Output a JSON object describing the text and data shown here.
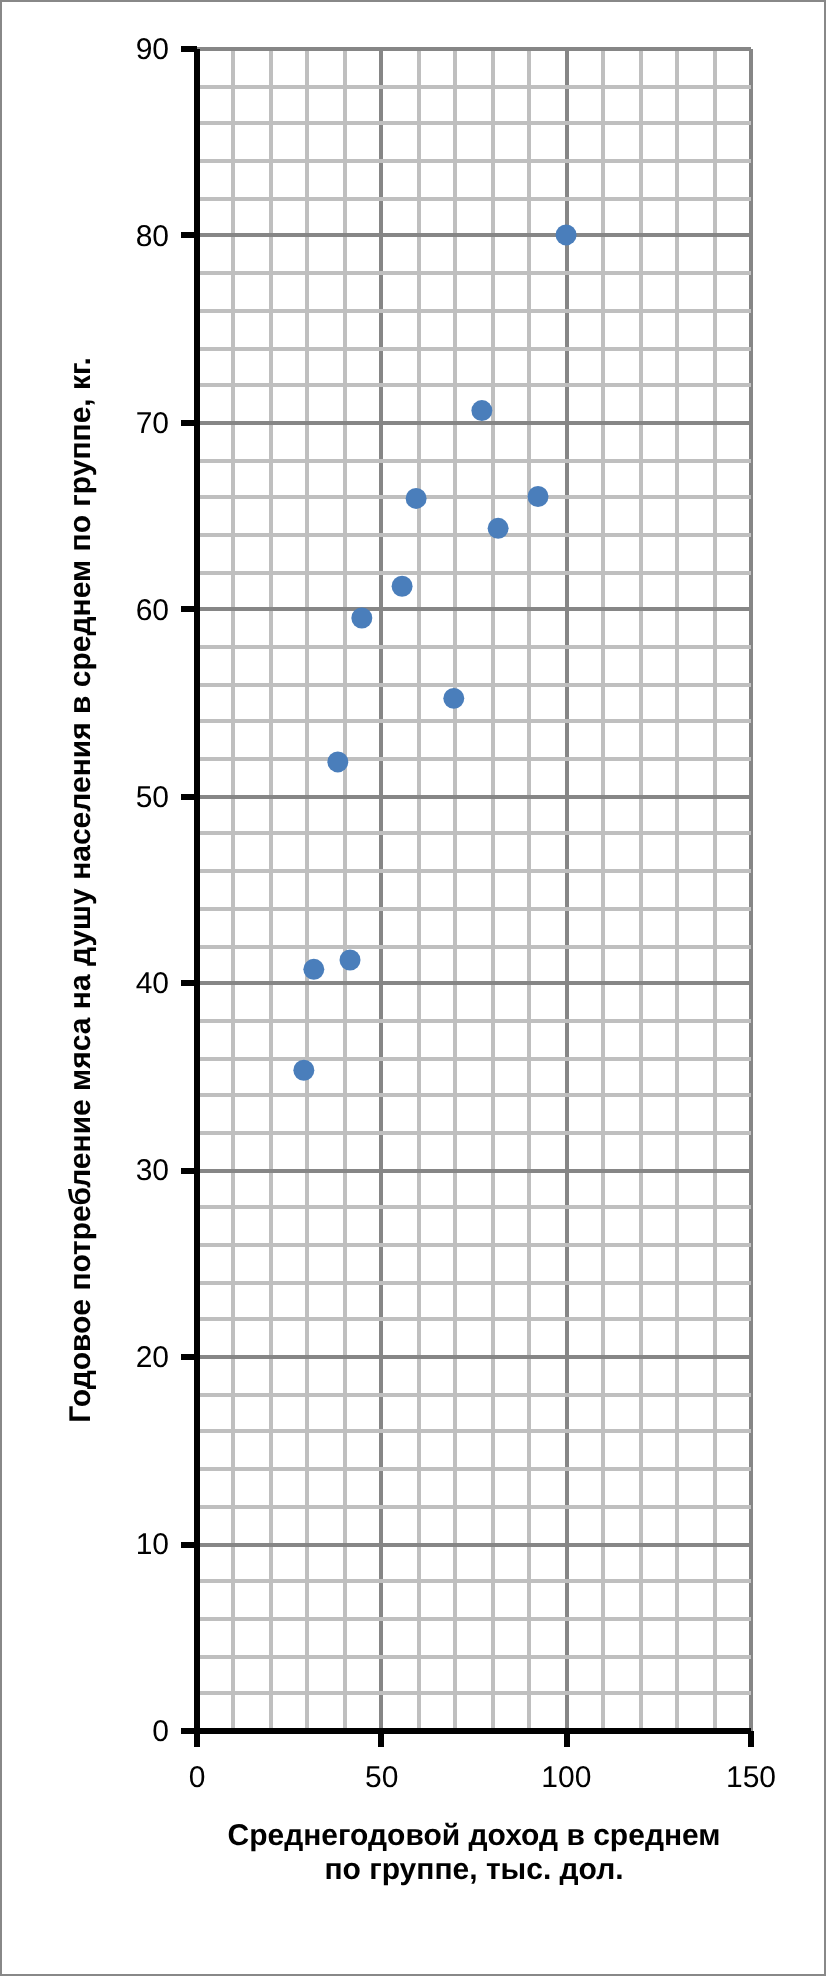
{
  "chart_data": {
    "type": "scatter",
    "xlabel": "Среднегодовой доход в среднем по группе, тыс. дол.",
    "ylabel": "Годовое потребление мяса на душу населения в среднем по группе, кг.",
    "x": [
      29.2,
      31.9,
      41.7,
      38.4,
      44.9,
      55.8,
      59.6,
      69.8,
      77.4,
      81.8,
      92.6,
      100.2
    ],
    "series": [
      {
        "color": "#4a7ebb",
        "values": [
          35.3,
          40.7,
          41.2,
          51.8,
          59.5,
          61.2,
          65.9,
          55.2,
          70.6,
          64.3,
          66.0,
          80.0
        ]
      }
    ],
    "xlim": [
      0,
      150
    ],
    "xticks": [
      0,
      50,
      100,
      150
    ],
    "ylim": [
      0,
      90
    ],
    "yticks": [
      0,
      10,
      20,
      30,
      40,
      50,
      60,
      70,
      80,
      90
    ],
    "grid": true,
    "marker": "circle"
  }
}
